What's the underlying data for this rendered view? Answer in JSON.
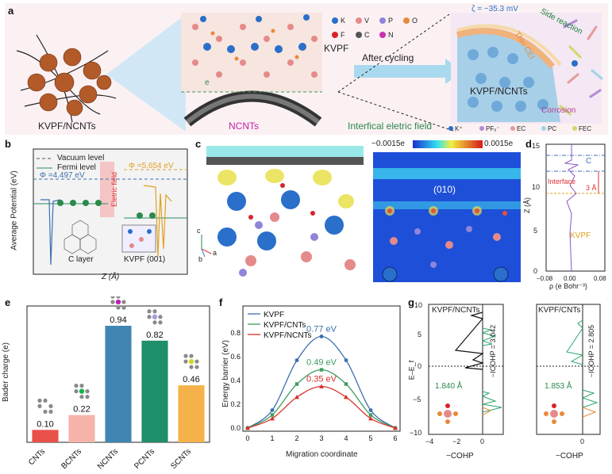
{
  "panel_a": {
    "letter": "a",
    "label_kvpf_ncnts": "KVPF/NCNTs",
    "label_ncnts": "NCNTs",
    "label_kvpf": "KVPF",
    "label_after_cycling": "After cycling",
    "label_interfacial_field": "Interfical eletric field",
    "label_e": "e",
    "zeta": "ζ = −35.3 mV",
    "side_reaction": "Side reaction",
    "thin_cei": "Thin CEI",
    "corrosion": "Corrosion",
    "kvpf_ncnts_right": "KVPF/NCNTs",
    "legend_atoms": [
      {
        "symbol": "K",
        "color": "#2a6fc9"
      },
      {
        "symbol": "V",
        "color": "#e58a8a"
      },
      {
        "symbol": "P",
        "color": "#8f85d8"
      },
      {
        "symbol": "O",
        "color": "#e8893a"
      },
      {
        "symbol": "F",
        "color": "#d8232a"
      },
      {
        "symbol": "C",
        "color": "#555555"
      },
      {
        "symbol": "N",
        "color": "#cc2fb0"
      }
    ],
    "legend_species": [
      {
        "symbol": "K⁺",
        "color": "#2a6fc9"
      },
      {
        "symbol": "PF₆⁻",
        "color": "#b48ad8"
      },
      {
        "symbol": "EC",
        "color": "#e79a9a"
      },
      {
        "symbol": "PC",
        "color": "#9fd3e8"
      },
      {
        "symbol": "FEC",
        "color": "#cfd86a"
      }
    ]
  },
  "panel_b": {
    "letter": "b",
    "legend_vacuum": "Vacuum level",
    "legend_fermi": "Fermi level",
    "phi_left": "Φ =4.497 eV",
    "phi_right": "Φ =5.654 eV",
    "eletric_field": "Eletric field",
    "ylabel": "Average Potential (eV)",
    "xlabel": "Z (Å)",
    "label_c_layer": "C layer",
    "label_kvpf001": "KVPF (001)"
  },
  "panel_c": {
    "letter": "c",
    "scale_min": "−0.0015e",
    "scale_max": "0.0015e",
    "facet": "(010)",
    "axis_c": "c",
    "axis_b": "b",
    "axis_a": "a"
  },
  "panel_d": {
    "letter": "d",
    "ylabel": "Z (Å)",
    "xlabel": "ρ (e Bohr⁻³)",
    "label_c": "C",
    "label_interface": "Interface",
    "label_3a": "3 Å",
    "label_kvpf": "KVPF",
    "yticks": [
      "0",
      "5",
      "10",
      "15"
    ],
    "xticks": [
      "−0.08",
      "0.00",
      "0.08"
    ]
  },
  "panel_g": {
    "letter": "g",
    "left_title": "KVPF/NCNTs",
    "right_title": "KVPF/CNTs",
    "left_icohp": "−ICOHP = 3.042",
    "right_icohp": "−ICOHP = 2.805",
    "left_bond": "1.840 Å",
    "right_bond": "1.853 Å",
    "ylabel": "E–E_f",
    "xlabel": "−COHP",
    "left_xticks": [
      "−4",
      "−2",
      "0"
    ],
    "right_xticks": [
      "0"
    ],
    "yticks": [
      "10",
      "5",
      "0",
      "−5",
      "−10"
    ]
  },
  "chart_data": [
    {
      "id": "e",
      "letter": "e",
      "type": "bar",
      "ylabel": "Bader charge (e)",
      "categories": [
        "CNTs",
        "BCNTs",
        "NCNTs",
        "PCNTs",
        "SCNTs"
      ],
      "values": [
        0.1,
        0.22,
        0.94,
        0.82,
        0.46
      ],
      "labels": [
        "0.10",
        "0.22",
        "0.94",
        "0.82",
        "0.46"
      ],
      "colors": [
        "#e8514a",
        "#f5b3aa",
        "#3f86b3",
        "#1f8e6b",
        "#f6b24a"
      ],
      "ylim": [
        0,
        1.1
      ]
    },
    {
      "id": "f",
      "letter": "f",
      "type": "line",
      "xlabel": "Migration coordinate",
      "ylabel": "Energy barrier (eV)",
      "x": [
        0,
        1,
        2,
        3,
        4,
        5,
        6
      ],
      "xticks": [
        "0",
        "1",
        "2",
        "3",
        "4",
        "5",
        "6"
      ],
      "yticks": [
        "0.0",
        "0.2",
        "0.4",
        "0.6",
        "0.8"
      ],
      "ylim": [
        0,
        1.0
      ],
      "series": [
        {
          "name": "KVPF",
          "values": [
            0.0,
            0.15,
            0.57,
            0.77,
            0.57,
            0.15,
            0.0
          ],
          "color": "#3d6fb0",
          "peak_label": "0.77 eV"
        },
        {
          "name": "KVPF/CNTs",
          "values": [
            0.0,
            0.11,
            0.37,
            0.49,
            0.37,
            0.11,
            0.0
          ],
          "color": "#3f9b5f",
          "peak_label": "0.49 eV"
        },
        {
          "name": "KVPF/NCNTs",
          "values": [
            0.0,
            0.08,
            0.26,
            0.35,
            0.26,
            0.08,
            0.0
          ],
          "color": "#d7302a",
          "peak_label": "0.35 eV"
        }
      ]
    }
  ]
}
